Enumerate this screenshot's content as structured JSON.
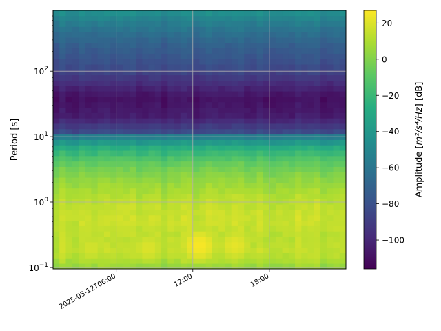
{
  "chart_data": {
    "type": "heatmap",
    "title": "",
    "xlabel": "",
    "ylabel": "Period [s]",
    "y_scale": "log",
    "ylim": [
      0.095,
      850
    ],
    "y_ticks": [
      {
        "value": 0.1,
        "base": "10",
        "exp": "−1"
      },
      {
        "value": 1,
        "base": "10",
        "exp": "0"
      },
      {
        "value": 10,
        "base": "10",
        "exp": "1"
      },
      {
        "value": 100,
        "base": "10",
        "exp": "2"
      }
    ],
    "x_start_hour": 1.05,
    "x_end_hour": 24.0,
    "x_ticks": [
      {
        "hour": 6,
        "label": "2025-05-12T06:00"
      },
      {
        "hour": 12,
        "label": "12:00"
      },
      {
        "hour": 18,
        "label": "18:00"
      }
    ],
    "grid": true,
    "colormap": "viridis",
    "colorbar": {
      "label_prefix": "Amplitude [",
      "label_math": "m²/s⁴/Hz",
      "label_suffix": "] [dB]",
      "range": [
        -116,
        27
      ],
      "ticks": [
        20,
        0,
        -20,
        -40,
        -60,
        -80,
        -100
      ]
    },
    "period_profile_db": [
      {
        "period": 0.1,
        "db": 5
      },
      {
        "period": 0.13,
        "db": 10
      },
      {
        "period": 0.18,
        "db": 14
      },
      {
        "period": 0.3,
        "db": 13
      },
      {
        "period": 0.6,
        "db": 16
      },
      {
        "period": 1.0,
        "db": 13
      },
      {
        "period": 2.0,
        "db": 5
      },
      {
        "period": 4.0,
        "db": -8
      },
      {
        "period": 7.0,
        "db": -28
      },
      {
        "period": 10.0,
        "db": -55
      },
      {
        "period": 12.0,
        "db": -85
      },
      {
        "period": 20.0,
        "db": -104
      },
      {
        "period": 40.0,
        "db": -110
      },
      {
        "period": 70.0,
        "db": -96
      },
      {
        "period": 120.0,
        "db": -82
      },
      {
        "period": 250.0,
        "db": -72
      },
      {
        "period": 500.0,
        "db": -58
      },
      {
        "period": 850.0,
        "db": -44
      }
    ],
    "hotspots": [
      {
        "hour": 12.5,
        "period": 0.22,
        "db": 26
      },
      {
        "hour": 15.3,
        "period": 0.22,
        "db": 22
      },
      {
        "hour": 8.5,
        "period": 0.2,
        "db": 20
      },
      {
        "hour": 4.0,
        "period": 0.2,
        "db": 18
      }
    ]
  }
}
